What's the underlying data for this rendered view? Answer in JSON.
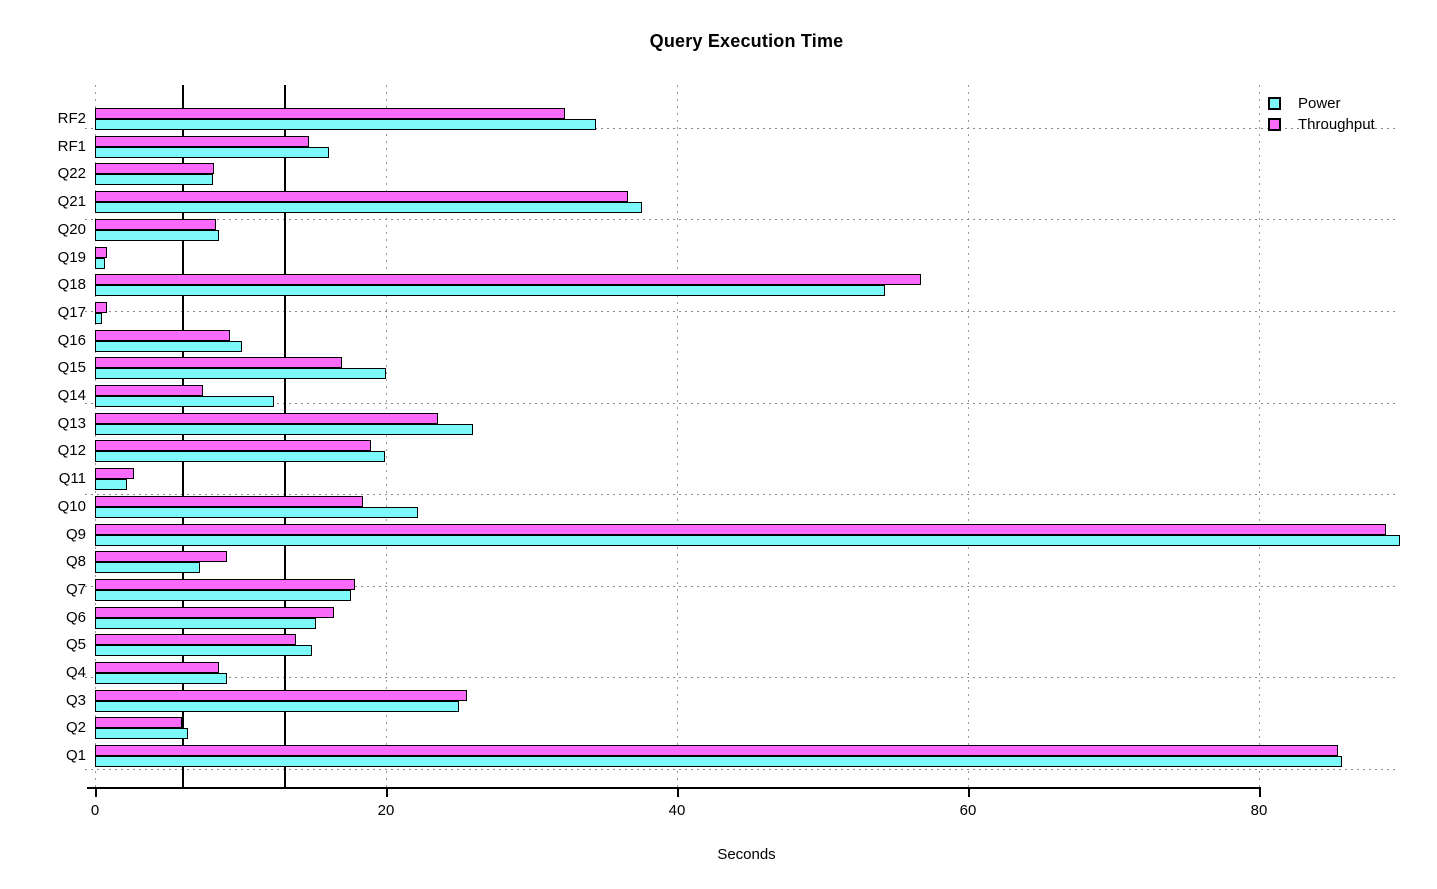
{
  "chart_data": {
    "type": "bar",
    "orientation": "horizontal",
    "title": "Query Execution Time",
    "xlabel": "Seconds",
    "ylabel": "",
    "xlim": [
      0,
      89.6
    ],
    "x_ticks": [
      0,
      20,
      40,
      60,
      80
    ],
    "grid": true,
    "legend_position": "top-right",
    "categories_top_to_bottom": [
      "RF2",
      "RF1",
      "Q22",
      "Q21",
      "Q20",
      "Q19",
      "Q18",
      "Q17",
      "Q16",
      "Q15",
      "Q14",
      "Q13",
      "Q12",
      "Q11",
      "Q10",
      "Q9",
      "Q8",
      "Q7",
      "Q6",
      "Q5",
      "Q4",
      "Q3",
      "Q2",
      "Q1"
    ],
    "bar_order_within_group_top_to_bottom": [
      "Throughput",
      "Power"
    ],
    "series": [
      {
        "name": "Power",
        "color": "#7DF9F9",
        "values": [
          34.4,
          16.1,
          8.1,
          37.6,
          8.5,
          0.7,
          54.3,
          0.5,
          10.1,
          20.0,
          12.3,
          26.0,
          19.9,
          2.2,
          22.2,
          89.7,
          7.2,
          17.6,
          15.2,
          14.9,
          9.1,
          25.0,
          6.4,
          85.7
        ]
      },
      {
        "name": "Throughput",
        "color": "#FB6BFB",
        "values": [
          32.3,
          14.7,
          8.2,
          36.6,
          8.3,
          0.8,
          56.8,
          0.8,
          9.3,
          17.0,
          7.4,
          23.6,
          19.0,
          2.7,
          18.4,
          88.7,
          9.1,
          17.9,
          16.4,
          13.8,
          8.5,
          25.6,
          6.0,
          85.4
        ]
      }
    ],
    "reference_lines_x": [
      6.0,
      13.0
    ]
  },
  "legend": {
    "items": [
      {
        "label": "Power",
        "color": "#7DF9F9"
      },
      {
        "label": "Throughput",
        "color": "#FB6BFB"
      }
    ]
  }
}
